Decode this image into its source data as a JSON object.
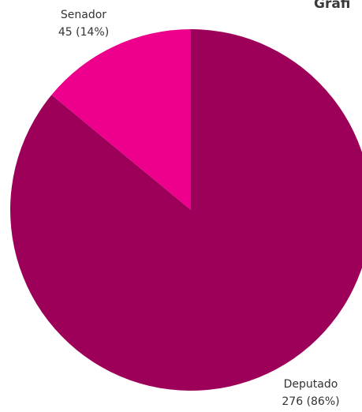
{
  "chart_data": {
    "type": "pie",
    "title": "Grafi",
    "start_angle_deg": 0,
    "direction": "clockwise",
    "slices": [
      {
        "label": "Deputado",
        "value": 276,
        "value_label": "276 (86%)",
        "color": "#9c0058"
      },
      {
        "label": "Senador",
        "value": 45,
        "value_label": "45 (14%)",
        "color": "#ec008c"
      }
    ]
  }
}
